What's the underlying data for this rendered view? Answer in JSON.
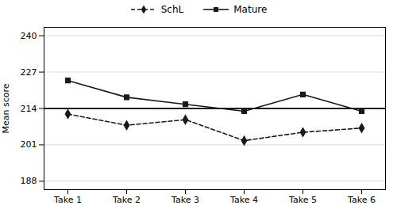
{
  "chart_data": {
    "type": "line",
    "categories": [
      "Take 1",
      "Take 2",
      "Take 3",
      "Take 4",
      "Take 5",
      "Take 6"
    ],
    "series": [
      {
        "name": "SchL",
        "color": "#1a1a1a",
        "values": [
          212.0,
          208.0,
          210.0,
          202.5,
          205.5,
          207.0
        ],
        "marker": "diamond",
        "line_style": "dashed"
      },
      {
        "name": "Mature",
        "color": "#1a1a1a",
        "values": [
          224.0,
          218.0,
          215.5,
          213.0,
          219.0,
          213.0
        ],
        "marker": "square",
        "line_style": "solid"
      }
    ],
    "reference_line": 214,
    "ylabel": "Mean score",
    "ylim": [
      185,
      243
    ],
    "yticks": [
      188,
      201,
      214,
      227,
      240
    ],
    "grid": true,
    "legend": "top"
  }
}
